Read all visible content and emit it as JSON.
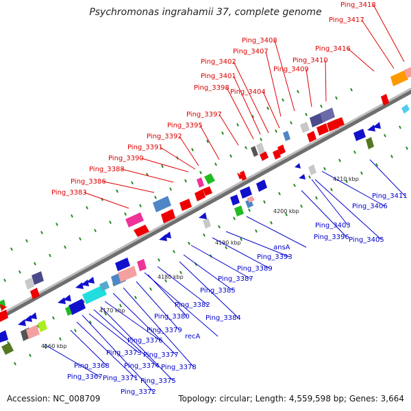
{
  "title": "Psychromonas ingrahamii 37, complete genome",
  "footer": {
    "accession": "Accession: NC_008709",
    "topology": "Topology: circular; Length: 4,559,598 bp; Genes: 3,664"
  },
  "colors": {
    "forward_label": "#dd0000",
    "reverse_label": "#0000cc",
    "backbone": "#9a9a9a",
    "tick": "#228b22"
  },
  "kbp_marks": [
    "4160 kbp",
    "4170 kbp",
    "4180 kbp",
    "4190 kbp",
    "4200 kbp",
    "4210 kbp"
  ],
  "forward_labels": [
    "Ping_3383",
    "Ping_3386",
    "Ping_3388",
    "Ping_3390",
    "Ping_3391",
    "Ping_3392",
    "Ping_3395",
    "Ping_3397",
    "Ping_3398",
    "Ping_3401",
    "Ping_3402",
    "Ping_3404",
    "Ping_3407",
    "Ping_3408",
    "Ping_3409",
    "Ping_3410",
    "Ping_3416",
    "Ping_3417",
    "Ping_3418"
  ],
  "reverse_labels": [
    "Ping_3367",
    "Ping_3368",
    "Ping_3371",
    "Ping_3372",
    "Ping_3373",
    "Ping_3374",
    "Ping_3375",
    "Ping_3376",
    "Ping_3377",
    "Ping_3378",
    "Ping_3379",
    "recA",
    "Ping_3380",
    "Ping_3382",
    "Ping_3384",
    "Ping_3385",
    "Ping_3387",
    "Ping_3389",
    "Ping_3393",
    "ansA",
    "Ping_3396",
    "Ping_3403",
    "Ping_3405",
    "Ping_3406",
    "Ping_3411"
  ]
}
